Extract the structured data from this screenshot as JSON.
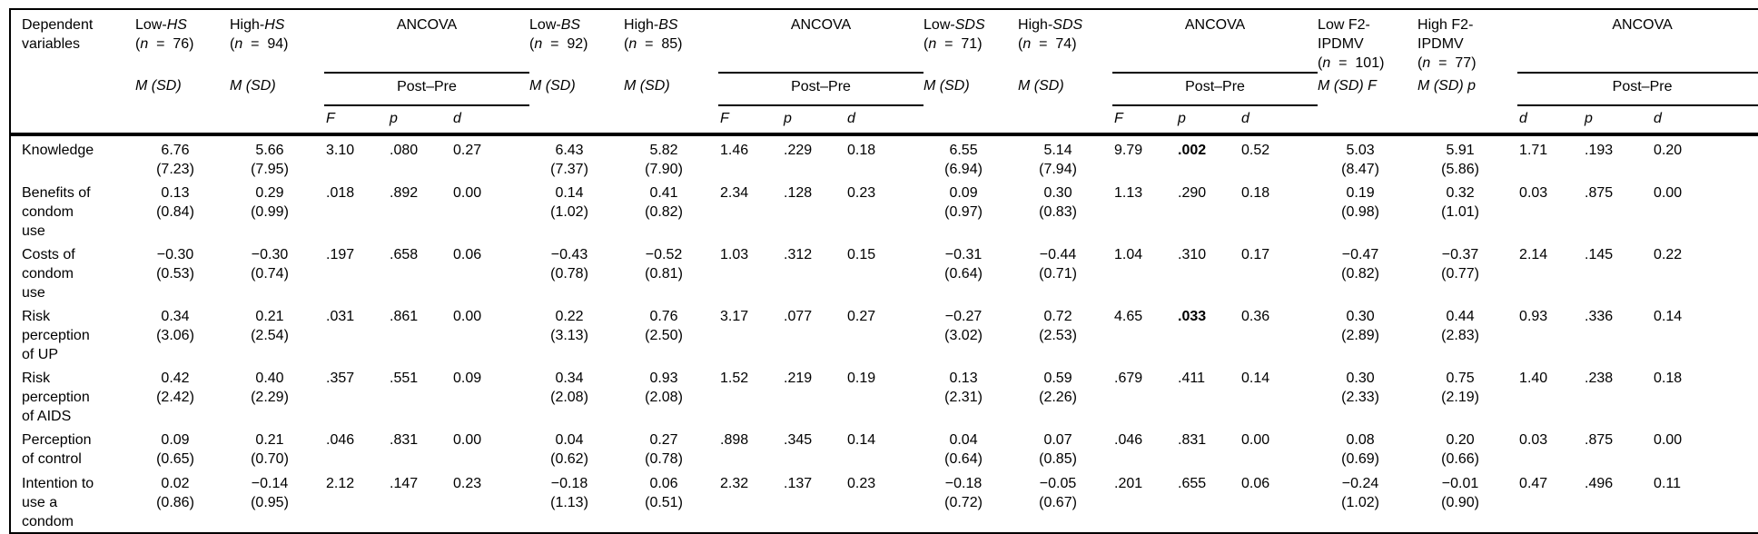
{
  "title_col": {
    "lines": [
      "Dependent",
      "variables"
    ]
  },
  "span_label": "ANCOVA",
  "sub_span_label": "Post–Pre",
  "groups": [
    {
      "low": {
        "lines": [
          "Low-|HS"
        ],
        "n_line": "(n  =  76)",
        "msd": "M (SD)"
      },
      "high": {
        "lines": [
          "High-|HS"
        ],
        "n_line": "(n  =  94)",
        "msd": "M (SD)"
      },
      "stats": [
        "F",
        "p",
        "d"
      ]
    },
    {
      "low": {
        "lines": [
          "Low-|BS"
        ],
        "n_line": "(n  =  92)",
        "msd": "M (SD)"
      },
      "high": {
        "lines": [
          "High-|BS"
        ],
        "n_line": "(n  =  85)",
        "msd": "M (SD)"
      },
      "stats": [
        "F",
        "p",
        "d"
      ]
    },
    {
      "low": {
        "lines": [
          "Low-|SDS"
        ],
        "n_line": "(n  =  71)",
        "msd": "M (SD)"
      },
      "high": {
        "lines": [
          "High-|SDS"
        ],
        "n_line": "(n  =  74)",
        "msd": "M (SD)"
      },
      "stats": [
        "F",
        "p",
        "d"
      ]
    },
    {
      "low": {
        "lines": [
          "Low F2-",
          "IPDMV"
        ],
        "n_line": "(n  =  101)",
        "msd": "M (SD) F"
      },
      "high": {
        "lines": [
          "High F2-",
          "IPDMV"
        ],
        "n_line": "(n  =  77)",
        "msd": "M (SD) p"
      },
      "stats": [
        "d",
        "p",
        "d"
      ]
    }
  ],
  "rows": [
    {
      "label_lines": [
        "Knowledge"
      ],
      "groups": [
        {
          "lm": "6.76",
          "lsd": "(7.23)",
          "hm": "5.66",
          "hsd": "(7.95)",
          "f": "3.10",
          "p": ".080",
          "d": "0.27"
        },
        {
          "lm": "6.43",
          "lsd": "(7.37)",
          "hm": "5.82",
          "hsd": "(7.90)",
          "f": "1.46",
          "p": ".229",
          "d": "0.18"
        },
        {
          "lm": "6.55",
          "lsd": "(6.94)",
          "hm": "5.14",
          "hsd": "(7.94)",
          "f": "9.79",
          "p": ".002",
          "d": "0.52",
          "pb": true
        },
        {
          "lm": "5.03",
          "lsd": "(8.47)",
          "hm": "5.91",
          "hsd": "(5.86)",
          "f": "1.71",
          "p": ".193",
          "d": "0.20"
        }
      ]
    },
    {
      "label_lines": [
        "Benefits of",
        "condom",
        "use"
      ],
      "groups": [
        {
          "lm": "0.13",
          "lsd": "(0.84)",
          "hm": "0.29",
          "hsd": "(0.99)",
          "f": ".018",
          "p": ".892",
          "d": "0.00"
        },
        {
          "lm": "0.14",
          "lsd": "(1.02)",
          "hm": "0.41",
          "hsd": "(0.82)",
          "f": "2.34",
          "p": ".128",
          "d": "0.23"
        },
        {
          "lm": "0.09",
          "lsd": "(0.97)",
          "hm": "0.30",
          "hsd": "(0.83)",
          "f": "1.13",
          "p": ".290",
          "d": "0.18"
        },
        {
          "lm": "0.19",
          "lsd": "(0.98)",
          "hm": "0.32",
          "hsd": "(1.01)",
          "f": "0.03",
          "p": ".875",
          "d": "0.00"
        }
      ]
    },
    {
      "label_lines": [
        "Costs of",
        "condom",
        "use"
      ],
      "groups": [
        {
          "lm": "−0.30",
          "lsd": "(0.53)",
          "hm": "−0.30",
          "hsd": "(0.74)",
          "f": ".197",
          "p": ".658",
          "d": "0.06"
        },
        {
          "lm": "−0.43",
          "lsd": "(0.78)",
          "hm": "−0.52",
          "hsd": "(0.81)",
          "f": "1.03",
          "p": ".312",
          "d": "0.15"
        },
        {
          "lm": "−0.31",
          "lsd": "(0.64)",
          "hm": "−0.44",
          "hsd": "(0.71)",
          "f": "1.04",
          "p": ".310",
          "d": "0.17"
        },
        {
          "lm": "−0.47",
          "lsd": "(0.82)",
          "hm": "−0.37",
          "hsd": "(0.77)",
          "f": "2.14",
          "p": ".145",
          "d": "0.22"
        }
      ]
    },
    {
      "label_lines": [
        "Risk",
        "perception",
        "of UP"
      ],
      "groups": [
        {
          "lm": "0.34",
          "lsd": "(3.06)",
          "hm": "0.21",
          "hsd": "(2.54)",
          "f": ".031",
          "p": ".861",
          "d": "0.00"
        },
        {
          "lm": "0.22",
          "lsd": "(3.13)",
          "hm": "0.76",
          "hsd": "(2.50)",
          "f": "3.17",
          "p": ".077",
          "d": "0.27"
        },
        {
          "lm": "−0.27",
          "lsd": "(3.02)",
          "hm": "0.72",
          "hsd": "(2.53)",
          "f": "4.65",
          "p": ".033",
          "d": "0.36",
          "pb": true
        },
        {
          "lm": "0.30",
          "lsd": "(2.89)",
          "hm": "0.44",
          "hsd": "(2.83)",
          "f": "0.93",
          "p": ".336",
          "d": "0.14"
        }
      ]
    },
    {
      "label_lines": [
        "Risk",
        "perception",
        "of AIDS"
      ],
      "groups": [
        {
          "lm": "0.42",
          "lsd": "(2.42)",
          "hm": "0.40",
          "hsd": "(2.29)",
          "f": ".357",
          "p": ".551",
          "d": "0.09"
        },
        {
          "lm": "0.34",
          "lsd": "(2.08)",
          "hm": "0.93",
          "hsd": "(2.08)",
          "f": "1.52",
          "p": ".219",
          "d": "0.19"
        },
        {
          "lm": "0.13",
          "lsd": "(2.31)",
          "hm": "0.59",
          "hsd": "(2.26)",
          "f": ".679",
          "p": ".411",
          "d": "0.14"
        },
        {
          "lm": "0.30",
          "lsd": "(2.33)",
          "hm": "0.75",
          "hsd": "(2.19)",
          "f": "1.40",
          "p": ".238",
          "d": "0.18"
        }
      ]
    },
    {
      "label_lines": [
        "Perception",
        "of control"
      ],
      "groups": [
        {
          "lm": "0.09",
          "lsd": "(0.65)",
          "hm": "0.21",
          "hsd": "(0.70)",
          "f": ".046",
          "p": ".831",
          "d": "0.00"
        },
        {
          "lm": "0.04",
          "lsd": "(0.62)",
          "hm": "0.27",
          "hsd": "(0.78)",
          "f": ".898",
          "p": ".345",
          "d": "0.14"
        },
        {
          "lm": "0.04",
          "lsd": "(0.64)",
          "hm": "0.07",
          "hsd": "(0.85)",
          "f": ".046",
          "p": ".831",
          "d": "0.00"
        },
        {
          "lm": "0.08",
          "lsd": "(0.69)",
          "hm": "0.20",
          "hsd": "(0.66)",
          "f": "0.03",
          "p": ".875",
          "d": "0.00"
        }
      ]
    },
    {
      "label_lines": [
        "Intention to",
        "use a",
        "condom"
      ],
      "groups": [
        {
          "lm": "0.02",
          "lsd": "(0.86)",
          "hm": "−0.14",
          "hsd": "(0.95)",
          "f": "2.12",
          "p": ".147",
          "d": "0.23"
        },
        {
          "lm": "−0.18",
          "lsd": "(1.13)",
          "hm": "0.06",
          "hsd": "(0.51)",
          "f": "2.32",
          "p": ".137",
          "d": "0.23"
        },
        {
          "lm": "−0.18",
          "lsd": "(0.72)",
          "hm": "−0.05",
          "hsd": "(0.67)",
          "f": ".201",
          "p": ".655",
          "d": "0.06"
        },
        {
          "lm": "−0.24",
          "lsd": "(1.02)",
          "hm": "−0.01",
          "hsd": "(0.90)",
          "f": "0.47",
          "p": ".496",
          "d": "0.11"
        }
      ]
    }
  ]
}
